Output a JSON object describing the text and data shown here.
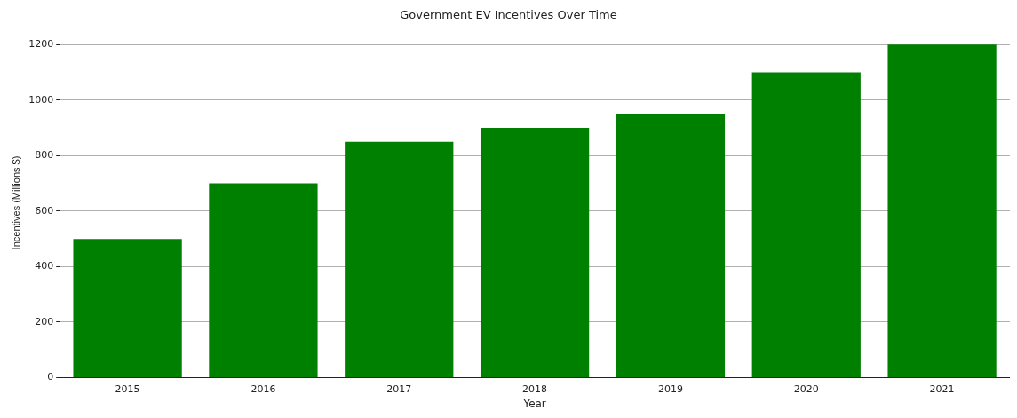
{
  "chart_data": {
    "type": "bar",
    "title": "Government EV Incentives Over Time",
    "xlabel": "Year",
    "ylabel": "Incentives (Millions $)",
    "categories": [
      "2015",
      "2016",
      "2017",
      "2018",
      "2019",
      "2020",
      "2021"
    ],
    "values": [
      500,
      700,
      850,
      900,
      950,
      1100,
      1200
    ],
    "color": "#008000",
    "ylim": [
      0,
      1260
    ],
    "yticks": [
      0,
      200,
      400,
      600,
      800,
      1000,
      1200
    ],
    "grid": "y",
    "legend": false
  }
}
